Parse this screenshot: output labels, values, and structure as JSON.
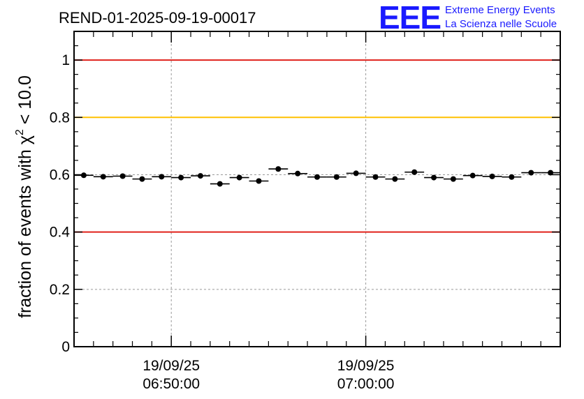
{
  "chart_data": {
    "type": "scatter",
    "title": "REND-01-2025-09-19-00017",
    "ylabel_main": "fraction of events with χ",
    "ylabel_sup": "2",
    "ylabel_tail": " < 10.0",
    "xlabel": "",
    "ylim": [
      0,
      1.1
    ],
    "yticks": [
      0,
      0.2,
      0.4,
      0.6,
      0.8,
      1
    ],
    "ytick_labels": [
      "0",
      "0.2",
      "0.4",
      "0.6",
      "0.8",
      "1"
    ],
    "xlim_minutes": [
      -5,
      20
    ],
    "xticks": [
      {
        "minute": 0,
        "date": "19/09/25",
        "time": "06:50:00"
      },
      {
        "minute": 10,
        "date": "19/09/25",
        "time": "07:00:00"
      }
    ],
    "grid": true,
    "reference_lines": [
      {
        "y": 1.0,
        "color": "#e0201a"
      },
      {
        "y": 0.8,
        "color": "#ffc000"
      },
      {
        "y": 0.4,
        "color": "#e0201a"
      }
    ],
    "bin_width_minutes": 1,
    "series": [
      {
        "x_minutes": [
          -4.5,
          -3.5,
          -2.5,
          -1.5,
          -0.5,
          0.5,
          1.5,
          2.5,
          3.5,
          4.5,
          5.5,
          6.5,
          7.5,
          8.5,
          9.5,
          10.5,
          11.5,
          12.5,
          13.5,
          14.5,
          15.5,
          16.5,
          17.5,
          18.5,
          19.5
        ],
        "y": [
          0.598,
          0.593,
          0.595,
          0.585,
          0.593,
          0.59,
          0.596,
          0.568,
          0.59,
          0.578,
          0.62,
          0.604,
          0.592,
          0.592,
          0.605,
          0.592,
          0.585,
          0.609,
          0.59,
          0.585,
          0.597,
          0.594,
          0.592,
          0.607,
          0.607
        ]
      }
    ]
  },
  "logo": {
    "text": "EEE",
    "line1": "Extreme Energy Events",
    "line2": "La Scienza nelle Scuole"
  }
}
